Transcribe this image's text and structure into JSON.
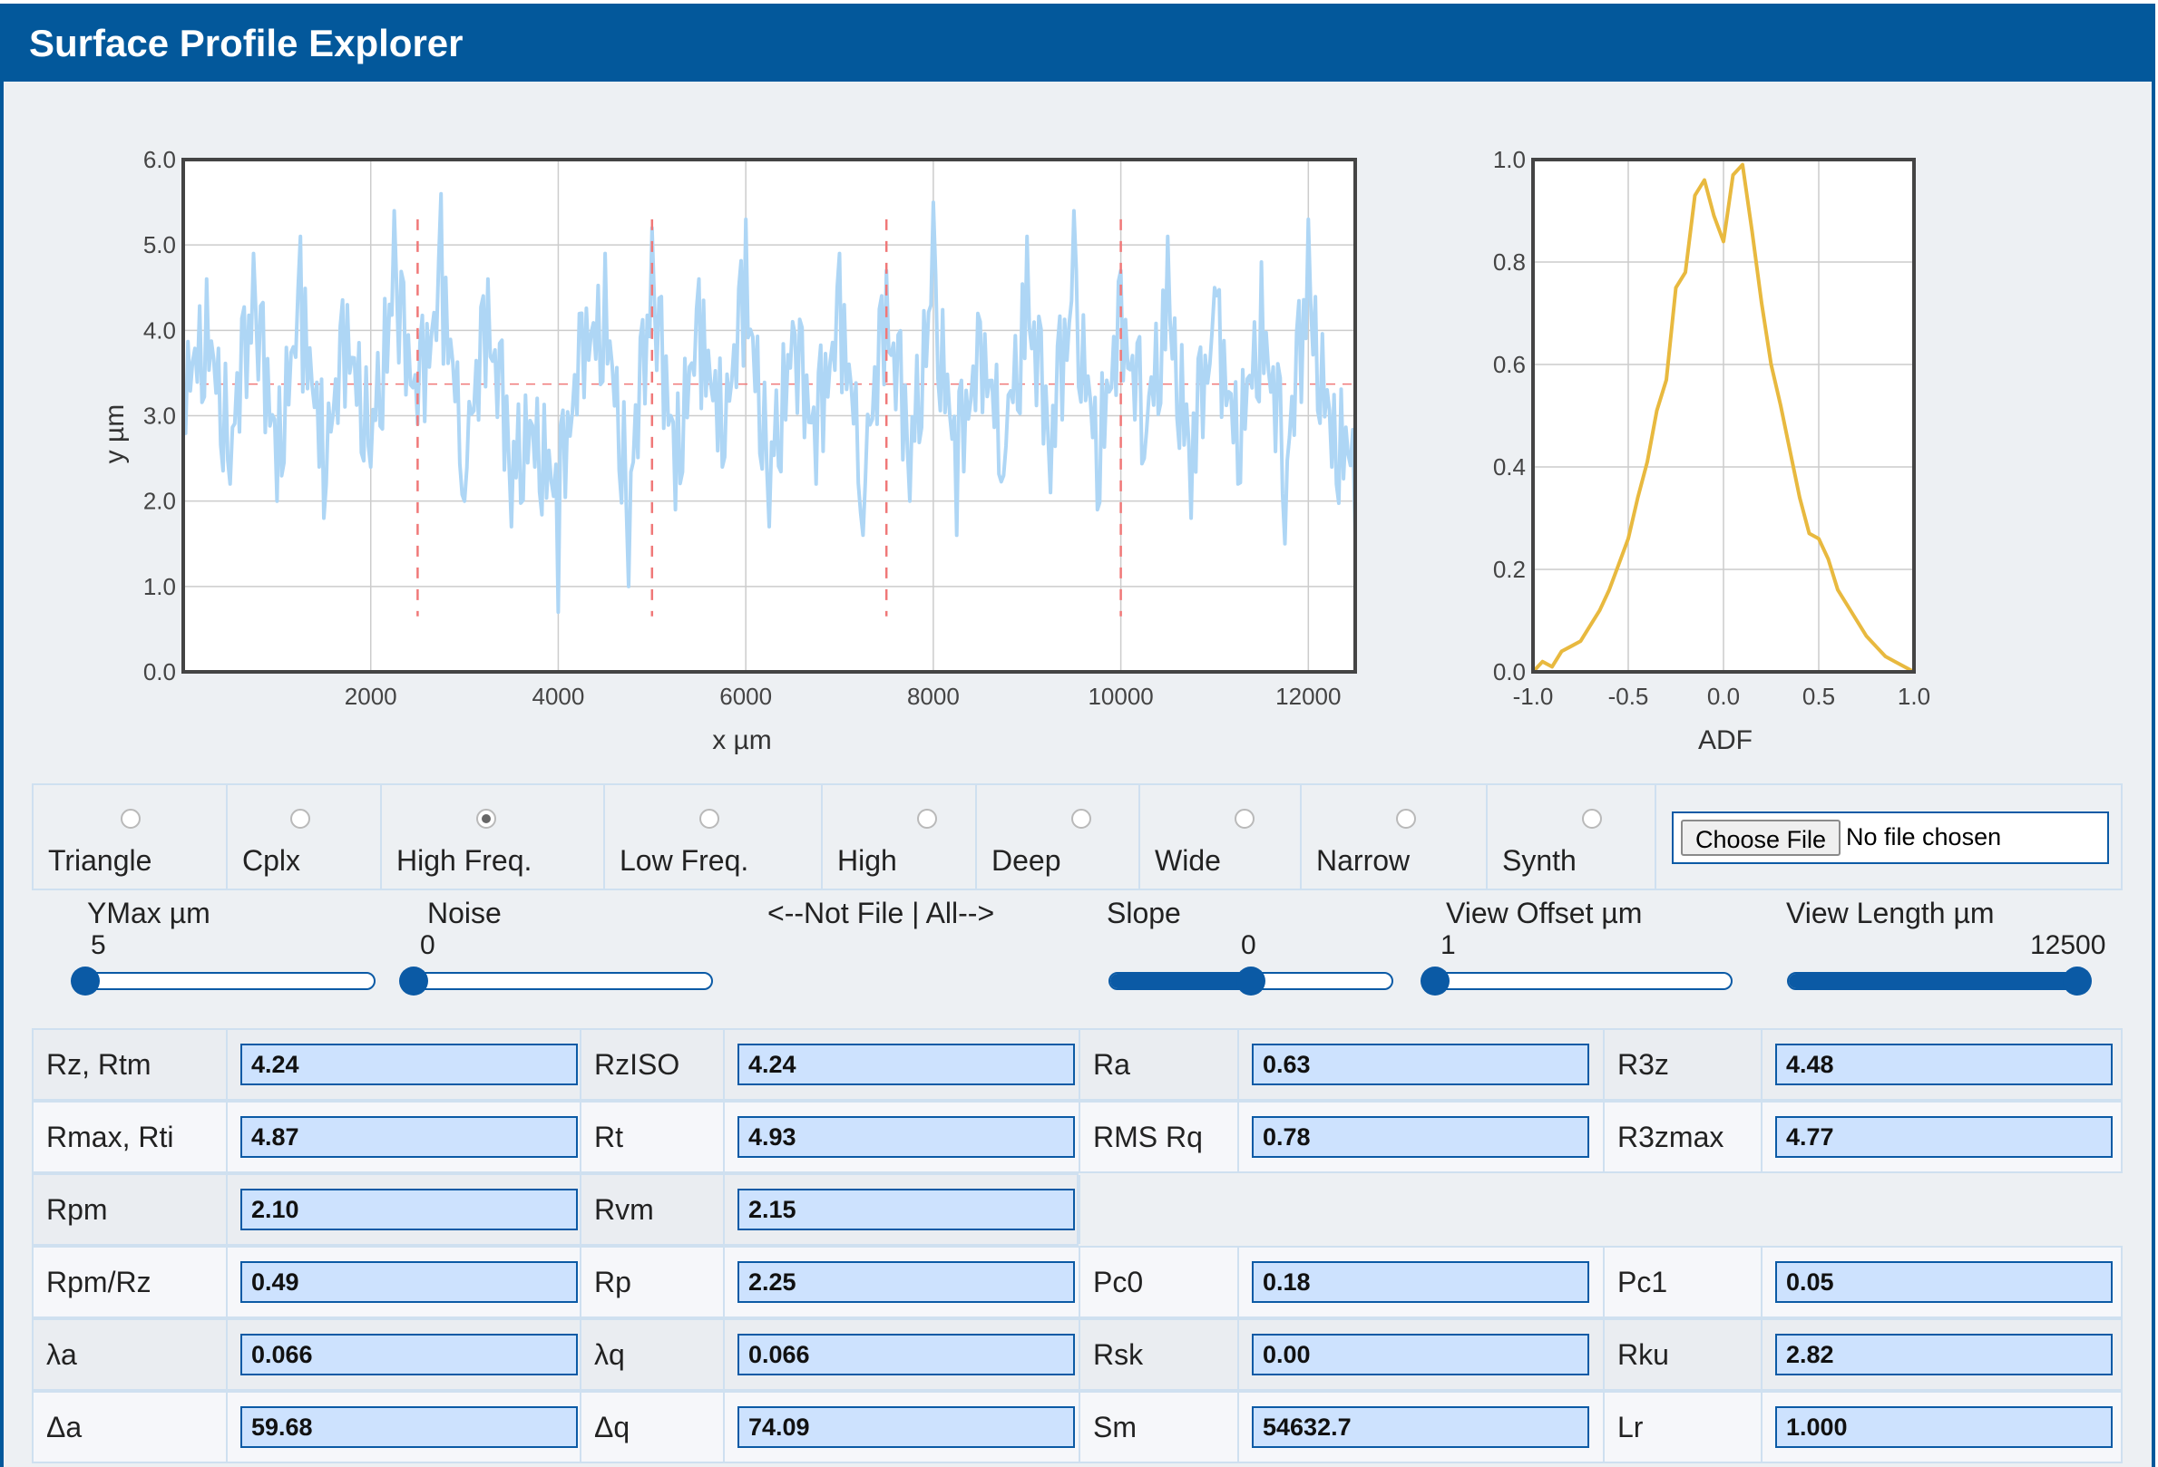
{
  "app": {
    "title": "Surface Profile Explorer"
  },
  "profile_plot": {
    "xlabel": "x µm",
    "ylabel": "y µm",
    "x_ticks": [
      "2000",
      "4000",
      "6000",
      "8000",
      "10000",
      "12000"
    ],
    "y_ticks": [
      "0.0",
      "1.0",
      "2.0",
      "3.0",
      "4.0",
      "5.0",
      "6.0"
    ]
  },
  "adf_plot": {
    "xlabel": "ADF",
    "x_ticks": [
      "-1.0",
      "-0.5",
      "0.0",
      "0.5",
      "1.0"
    ],
    "y_ticks": [
      "0.0",
      "0.2",
      "0.4",
      "0.6",
      "0.8",
      "1.0"
    ]
  },
  "chart_data": [
    {
      "type": "line",
      "name": "profile",
      "xlabel": "x µm",
      "ylabel": "y µm",
      "xlim": [
        0,
        12500
      ],
      "ylim": [
        0,
        6
      ],
      "x_ticks": [
        2000,
        4000,
        6000,
        8000,
        10000,
        12000
      ],
      "y_ticks": [
        0,
        1,
        2,
        3,
        4,
        5,
        6
      ],
      "grid": true,
      "series_color": "#aed6f5",
      "mean_line": 3.37,
      "section_markers_x": [
        2500,
        5000,
        7500,
        10000
      ],
      "marker_color": "#f07878",
      "x": [
        0,
        250,
        500,
        750,
        1000,
        1250,
        1500,
        1750,
        2000,
        2250,
        2500,
        2750,
        3000,
        3250,
        3500,
        3750,
        4000,
        4250,
        4500,
        4750,
        5000,
        5250,
        5500,
        5750,
        6000,
        6250,
        6500,
        6750,
        7000,
        7250,
        7500,
        7750,
        8000,
        8250,
        8500,
        8750,
        9000,
        9250,
        9500,
        9750,
        10000,
        10250,
        10500,
        10750,
        11000,
        11250,
        11500,
        11750,
        12000,
        12250,
        12500
      ],
      "y": [
        3.3,
        4.6,
        2.2,
        4.9,
        2.0,
        5.1,
        1.8,
        4.3,
        2.4,
        5.4,
        2.9,
        5.6,
        2.0,
        4.6,
        1.7,
        2.4,
        0.7,
        4.2,
        4.9,
        1.0,
        5.2,
        1.9,
        4.6,
        2.4,
        5.3,
        1.7,
        4.1,
        2.2,
        4.9,
        1.6,
        4.7,
        2.0,
        5.5,
        1.6,
        4.1,
        2.3,
        5.1,
        2.1,
        5.4,
        1.9,
        4.7,
        2.5,
        5.1,
        1.8,
        4.5,
        2.2,
        4.8,
        1.5,
        5.3,
        2.4,
        1.6
      ]
    },
    {
      "type": "line",
      "name": "ADF",
      "xlabel": "ADF",
      "xlim": [
        -1.0,
        1.0
      ],
      "ylim": [
        0,
        1.0
      ],
      "x_ticks": [
        -1.0,
        -0.5,
        0.0,
        0.5,
        1.0
      ],
      "y_ticks": [
        0,
        0.2,
        0.4,
        0.6,
        0.8,
        1.0
      ],
      "grid": true,
      "series_color": "#e8b93f",
      "x": [
        -1.0,
        -0.95,
        -0.9,
        -0.85,
        -0.8,
        -0.75,
        -0.7,
        -0.65,
        -0.6,
        -0.55,
        -0.5,
        -0.45,
        -0.4,
        -0.35,
        -0.3,
        -0.25,
        -0.2,
        -0.15,
        -0.1,
        -0.05,
        0.0,
        0.05,
        0.1,
        0.15,
        0.2,
        0.25,
        0.3,
        0.35,
        0.4,
        0.45,
        0.5,
        0.55,
        0.6,
        0.65,
        0.7,
        0.75,
        0.8,
        0.85,
        0.9,
        0.95,
        1.0
      ],
      "y": [
        0.0,
        0.02,
        0.01,
        0.04,
        0.05,
        0.06,
        0.09,
        0.12,
        0.16,
        0.21,
        0.26,
        0.34,
        0.41,
        0.51,
        0.57,
        0.75,
        0.78,
        0.93,
        0.96,
        0.89,
        0.84,
        0.97,
        0.99,
        0.86,
        0.72,
        0.6,
        0.52,
        0.43,
        0.34,
        0.27,
        0.26,
        0.22,
        0.16,
        0.13,
        0.1,
        0.07,
        0.05,
        0.03,
        0.02,
        0.01,
        0.0
      ]
    }
  ],
  "radios": [
    {
      "label": "Triangle",
      "checked": false
    },
    {
      "label": "Cplx",
      "checked": false
    },
    {
      "label": "High Freq.",
      "checked": true
    },
    {
      "label": "Low Freq.",
      "checked": false
    },
    {
      "label": "High",
      "checked": false
    },
    {
      "label": "Deep",
      "checked": false
    },
    {
      "label": "Wide",
      "checked": false
    },
    {
      "label": "Narrow",
      "checked": false
    },
    {
      "label": "Synth",
      "checked": false
    }
  ],
  "file_input": {
    "button": "Choose File",
    "status": "No file chosen"
  },
  "sliders": {
    "ymax": {
      "label": "YMax µm",
      "value": "5",
      "fraction": 0.0
    },
    "noise": {
      "label": "Noise",
      "value": "0",
      "fraction": 0.0
    },
    "separator": "<--Not File | All-->",
    "slope": {
      "label": "Slope",
      "value": "0",
      "fraction": 0.5
    },
    "view_offset": {
      "label": "View Offset µm",
      "value": "1",
      "fraction": 0.0
    },
    "view_length": {
      "label": "View Length µm",
      "value": "12500",
      "fraction": 1.0
    }
  },
  "metrics": [
    [
      {
        "label": "Rz, Rtm",
        "value": "4.24"
      },
      {
        "label": "RzISO",
        "value": "4.24"
      },
      {
        "label": "Ra",
        "value": "0.63"
      },
      {
        "label": "R3z",
        "value": "4.48"
      }
    ],
    [
      {
        "label": "Rmax, Rti",
        "value": "4.87"
      },
      {
        "label": "Rt",
        "value": "4.93"
      },
      {
        "label": "RMS Rq",
        "value": "0.78"
      },
      {
        "label": "R3zmax",
        "value": "4.77"
      }
    ],
    [
      {
        "label": "Rpm",
        "value": "2.10"
      },
      {
        "label": "Rvm",
        "value": "2.15"
      }
    ],
    [
      {
        "label": "Rpm/Rz",
        "value": "0.49"
      },
      {
        "label": "Rp",
        "value": "2.25"
      },
      {
        "label": "Pc0",
        "value": "0.18"
      },
      {
        "label": "Pc1",
        "value": "0.05"
      }
    ],
    [
      {
        "label": "λa",
        "value": "0.066"
      },
      {
        "label": "λq",
        "value": "0.066"
      },
      {
        "label": "Rsk",
        "value": "0.00"
      },
      {
        "label": "Rku",
        "value": "2.82"
      }
    ],
    [
      {
        "label": "Δa",
        "value": "59.68"
      },
      {
        "label": "Δq",
        "value": "74.09"
      },
      {
        "label": "Sm",
        "value": "54632.7"
      },
      {
        "label": "Lr",
        "value": "1.000"
      }
    ]
  ]
}
